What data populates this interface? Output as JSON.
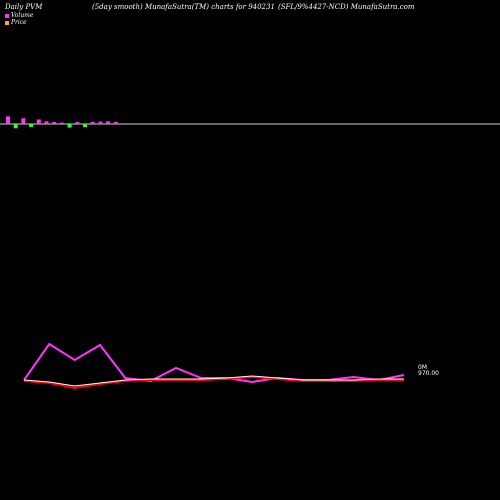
{
  "header": {
    "left": "Daily PVM",
    "center": "(5day smooth) MunafaSutra(TM) charts for 940231",
    "right": "(SFL/9%4427-NCD) MunafaSutra.com"
  },
  "legend": {
    "volume_label": "Volume",
    "price_label": "Price",
    "volume_color": "#ff33ff",
    "price_color": "#ff9966"
  },
  "axis": {
    "volume_tick": "0M",
    "price_tick": "970.00"
  },
  "chart_data": {
    "type": "line",
    "volume_bars": {
      "up_color": "#ff33ff",
      "down_color": "#33ff33",
      "values": [
        3.2,
        -1.8,
        2.4,
        -1.2,
        1.9,
        1.1,
        0.9,
        0.6,
        -1.5,
        0.8,
        -1.3,
        0.9,
        1.0,
        1.1,
        0.9
      ]
    },
    "series": [
      {
        "color": "#ff33ff",
        "values": [
          970,
          1006,
          990,
          1005,
          972,
          969,
          982,
          972,
          972,
          968,
          972,
          970,
          970,
          973,
          970,
          975
        ]
      },
      {
        "color": "#ff0000",
        "values": [
          969,
          967,
          962,
          966,
          969,
          970,
          970,
          970,
          971,
          973,
          971,
          969,
          969,
          969,
          970,
          970
        ]
      },
      {
        "color": "#ffffff",
        "values": [
          970,
          968,
          964,
          967,
          970,
          971,
          971,
          971,
          972,
          974,
          972,
          970,
          970,
          970,
          971,
          971
        ]
      }
    ],
    "ylim": [
      950,
      1020
    ]
  }
}
